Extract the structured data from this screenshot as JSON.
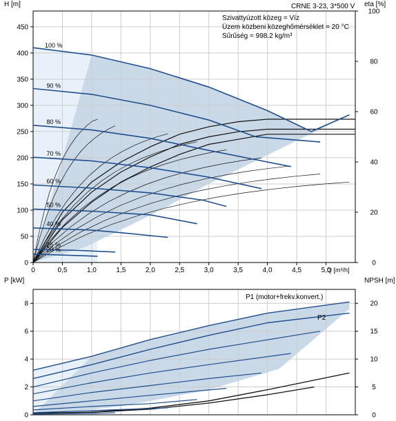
{
  "product_label": "CRNE 3-23, 3*500 V",
  "info_lines": [
    "Szivattyúzott közeg = Víz",
    "Üzem közbeni közeghőmérséklet = 20 °C",
    "Sűrűség = 998.2 kg/m³"
  ],
  "colors": {
    "curve": "#1f4e8c",
    "band_light": "#e8f1fa",
    "band_dark": "#c9d9e8",
    "eta": "#111111",
    "grid": "#cccccc",
    "axis": "#000000"
  },
  "chart_data": [
    {
      "type": "line",
      "title": "",
      "xlabel": "Q [m³/h]",
      "ylabel_left": "H [m]",
      "ylabel_right": "eta [%]",
      "xlim": [
        0,
        5.5
      ],
      "ylim_left": [
        0,
        480
      ],
      "ylim_right": [
        0,
        100
      ],
      "x_ticks": [
        "0",
        "0,5",
        "1,0",
        "1,5",
        "2,0",
        "2,5",
        "3,0",
        "3,5",
        "4,0",
        "4,5",
        "5,0"
      ],
      "y_ticks_left": [
        "0",
        "50",
        "100",
        "150",
        "200",
        "250",
        "300",
        "350",
        "400",
        "450"
      ],
      "y_ticks_right": [
        "0",
        "20",
        "40",
        "60",
        "80",
        "100"
      ],
      "grid": true,
      "head_curves": [
        {
          "speed_label": "100 %",
          "points": [
            [
              0,
              410
            ],
            [
              1.0,
              396
            ],
            [
              2.0,
              370
            ],
            [
              3.0,
              335
            ],
            [
              4.0,
              290
            ],
            [
              4.75,
              250
            ],
            [
              5.4,
              282
            ]
          ]
        },
        {
          "speed_label": "90 %",
          "points": [
            [
              0,
              332
            ],
            [
              1.0,
              321
            ],
            [
              2.0,
              300
            ],
            [
              3.0,
              272
            ],
            [
              3.8,
              240
            ],
            [
              4.9,
              230
            ]
          ]
        },
        {
          "speed_label": "80 %",
          "points": [
            [
              0,
              262
            ],
            [
              1.0,
              253
            ],
            [
              2.0,
              237
            ],
            [
              3.0,
              214
            ],
            [
              4.4,
              183
            ]
          ]
        },
        {
          "speed_label": "70 %",
          "points": [
            [
              0,
              201
            ],
            [
              1.0,
              194
            ],
            [
              2.0,
              181
            ],
            [
              3.0,
              163
            ],
            [
              3.9,
              141
            ]
          ]
        },
        {
          "speed_label": "60 %",
          "points": [
            [
              0,
              148
            ],
            [
              1.0,
              142
            ],
            [
              2.0,
              133
            ],
            [
              2.9,
              119
            ],
            [
              3.3,
              107
            ]
          ]
        },
        {
          "speed_label": "50 %",
          "points": [
            [
              0,
              102
            ],
            [
              1.0,
              98
            ],
            [
              2.0,
              91
            ],
            [
              2.8,
              74
            ]
          ]
        },
        {
          "speed_label": "40 %",
          "points": [
            [
              0,
              66
            ],
            [
              1.0,
              62
            ],
            [
              1.5,
              57
            ],
            [
              2.3,
              48
            ]
          ]
        },
        {
          "speed_label": "25 %",
          "points": [
            [
              0,
              25
            ],
            [
              0.8,
              23
            ],
            [
              1.4,
              20
            ]
          ]
        },
        {
          "speed_label": "20 %",
          "points": [
            [
              0,
              16
            ],
            [
              0.6,
              14
            ],
            [
              1.1,
              12
            ]
          ]
        }
      ],
      "eta_curves": [
        {
          "name": "",
          "points": [
            [
              0,
              0
            ],
            [
              0.5,
              20
            ],
            [
              1.0,
              32
            ],
            [
              1.5,
              40
            ],
            [
              2.0,
              46
            ],
            [
              2.5,
              51
            ],
            [
              3.0,
              54
            ],
            [
              3.5,
              56
            ],
            [
              4.0,
              57
            ],
            [
              5.5,
              57
            ]
          ]
        },
        {
          "name": "",
          "points": [
            [
              0,
              0
            ],
            [
              0.5,
              17
            ],
            [
              1.0,
              28
            ],
            [
              1.5,
              36
            ],
            [
              2.0,
              42
            ],
            [
              2.5,
              47
            ],
            [
              3.0,
              50
            ],
            [
              3.5,
              52
            ],
            [
              4.0,
              53
            ],
            [
              5.5,
              53
            ]
          ]
        },
        {
          "name": "",
          "points": [
            [
              0,
              0
            ],
            [
              0.5,
              14
            ],
            [
              1.0,
              24
            ],
            [
              1.5,
              32
            ],
            [
              2.0,
              38
            ],
            [
              2.5,
              43
            ],
            [
              3.0,
              47
            ],
            [
              3.5,
              49
            ],
            [
              4.0,
              51
            ],
            [
              5.5,
              51
            ]
          ]
        }
      ]
    },
    {
      "type": "line",
      "title": "",
      "xlabel": "",
      "ylabel_left": "P [kW]",
      "ylabel_right": "NPSH [m]",
      "xlim": [
        0,
        5.5
      ],
      "ylim_left": [
        0,
        9
      ],
      "ylim_right": [
        0,
        22.5
      ],
      "y_ticks_left": [
        "0",
        "2",
        "4",
        "6",
        "8"
      ],
      "y_ticks_right": [
        "0",
        "5",
        "10",
        "15",
        "20"
      ],
      "grid": true,
      "series_labels": [
        "P1 (motor+frekv.konvert.)",
        "P2"
      ],
      "power_curves": [
        {
          "name": "P1",
          "points": [
            [
              0,
              3.2
            ],
            [
              1.0,
              4.2
            ],
            [
              2.0,
              5.4
            ],
            [
              3.0,
              6.4
            ],
            [
              4.0,
              7.3
            ],
            [
              5.4,
              8.1
            ]
          ]
        },
        {
          "name": "P2",
          "points": [
            [
              0,
              2.6
            ],
            [
              1.0,
              3.6
            ],
            [
              2.0,
              4.7
            ],
            [
              3.0,
              5.7
            ],
            [
              4.0,
              6.6
            ],
            [
              5.4,
              7.3
            ]
          ]
        },
        {
          "name": "",
          "points": [
            [
              0,
              2.0
            ],
            [
              1.0,
              3.0
            ],
            [
              2.0,
              3.9
            ],
            [
              3.0,
              4.7
            ],
            [
              4.9,
              6.0
            ]
          ]
        },
        {
          "name": "",
          "points": [
            [
              0,
              1.5
            ],
            [
              1.0,
              2.3
            ],
            [
              2.0,
              3.0
            ],
            [
              3.0,
              3.6
            ],
            [
              4.4,
              4.4
            ]
          ]
        },
        {
          "name": "",
          "points": [
            [
              0,
              1.0
            ],
            [
              1.0,
              1.6
            ],
            [
              2.0,
              2.1
            ],
            [
              3.0,
              2.6
            ],
            [
              3.9,
              3.0
            ]
          ]
        },
        {
          "name": "",
          "points": [
            [
              0,
              0.6
            ],
            [
              1.0,
              1.0
            ],
            [
              2.0,
              1.4
            ],
            [
              3.3,
              1.9
            ]
          ]
        },
        {
          "name": "",
          "points": [
            [
              0,
              0.35
            ],
            [
              1.0,
              0.6
            ],
            [
              2.0,
              0.8
            ],
            [
              2.8,
              1.1
            ]
          ]
        },
        {
          "name": "",
          "points": [
            [
              0,
              0.15
            ],
            [
              1.0,
              0.3
            ],
            [
              2.3,
              0.5
            ]
          ]
        },
        {
          "name": "",
          "points": [
            [
              0,
              0.05
            ],
            [
              1.0,
              0.1
            ],
            [
              1.4,
              0.15
            ]
          ]
        }
      ],
      "npsh_curves": [
        {
          "name": "",
          "points": [
            [
              0,
              0.3
            ],
            [
              1.0,
              0.5
            ],
            [
              2.0,
              1.2
            ],
            [
              3.0,
              2.5
            ],
            [
              4.0,
              4.5
            ],
            [
              5.4,
              7.5
            ]
          ]
        },
        {
          "name": "",
          "points": [
            [
              0,
              0.3
            ],
            [
              1.0,
              0.45
            ],
            [
              2.0,
              1.0
            ],
            [
              3.0,
              2.1
            ],
            [
              4.0,
              3.6
            ],
            [
              4.8,
              5.0
            ]
          ]
        }
      ]
    }
  ]
}
